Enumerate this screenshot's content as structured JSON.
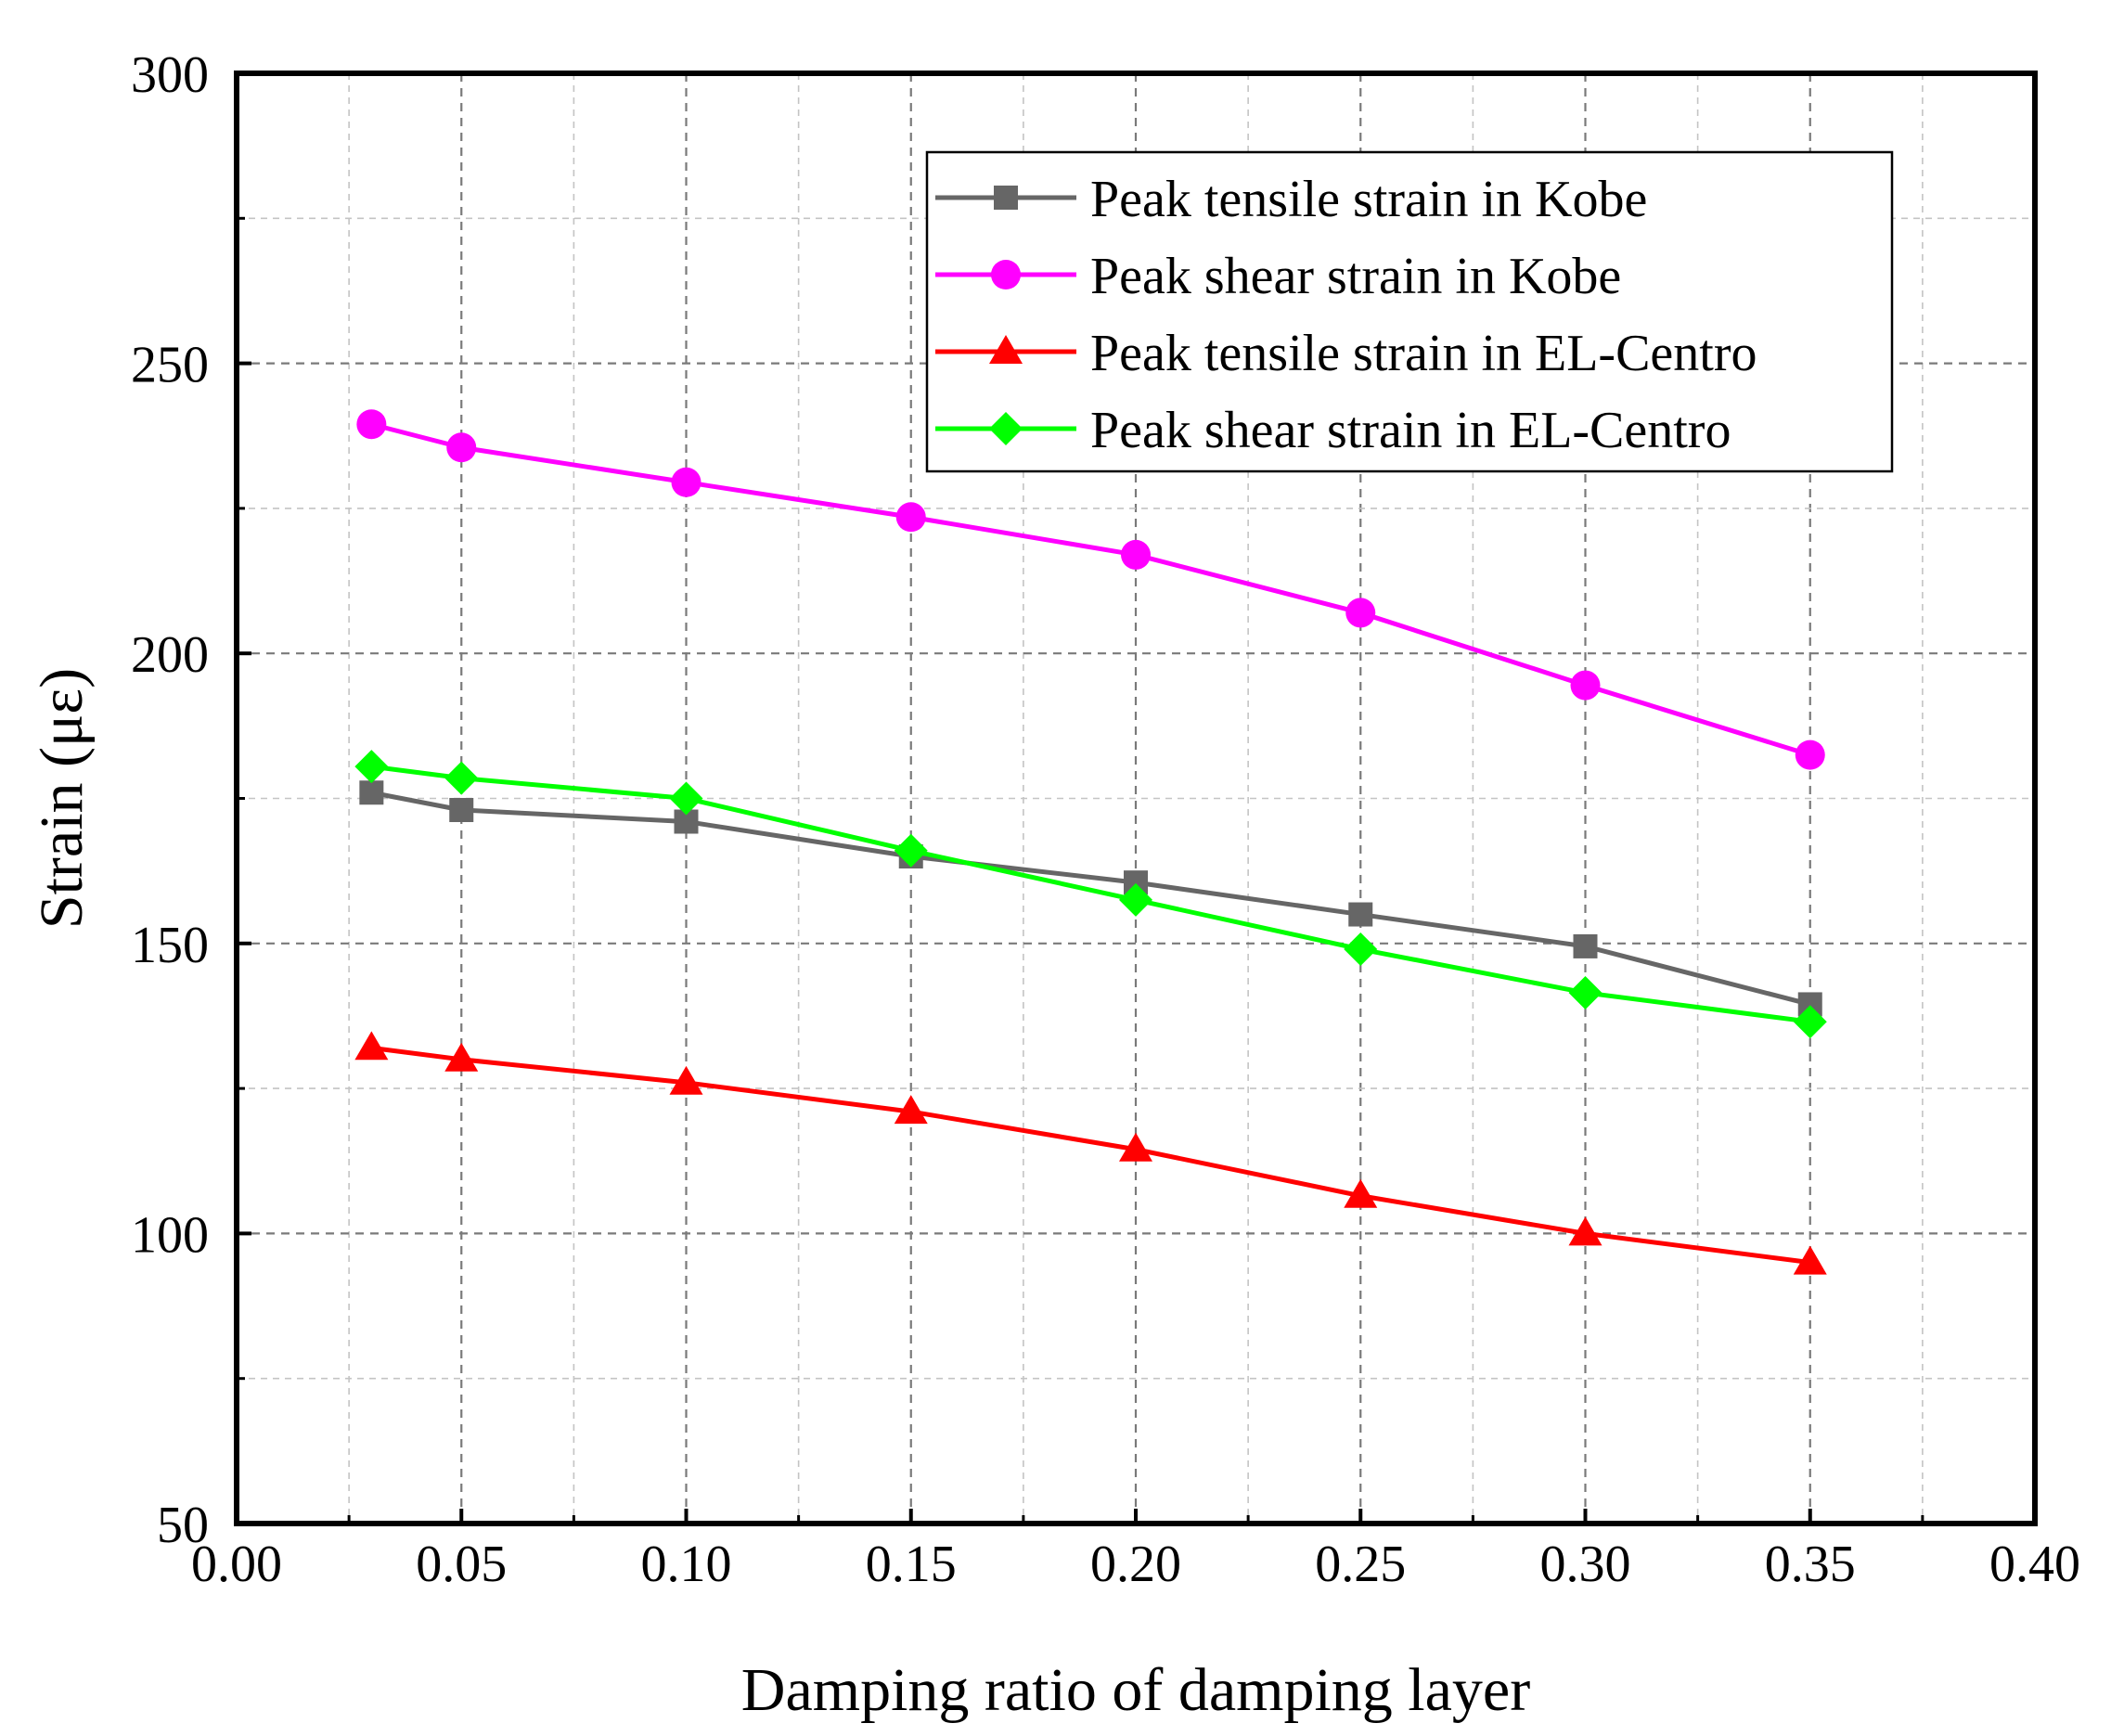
{
  "chart_data": {
    "type": "line",
    "title": "",
    "xlabel": "Damping ratio of damping layer",
    "ylabel": "Strain (με)",
    "xlim": [
      0.0,
      0.4
    ],
    "ylim": [
      50,
      300
    ],
    "xticks": [
      0.0,
      0.05,
      0.1,
      0.15,
      0.2,
      0.25,
      0.3,
      0.35,
      0.4
    ],
    "xtick_labels": [
      "0.00",
      "0.05",
      "0.10",
      "0.15",
      "0.20",
      "0.25",
      "0.30",
      "0.35",
      "0.40"
    ],
    "yticks": [
      50,
      100,
      150,
      200,
      250,
      300
    ],
    "ytick_labels": [
      "50",
      "100",
      "150",
      "200",
      "250",
      "300"
    ],
    "grid": true,
    "legend_position": "top-right",
    "x": [
      0.03,
      0.05,
      0.1,
      0.15,
      0.2,
      0.25,
      0.3,
      0.35
    ],
    "series": [
      {
        "name": "Peak tensile strain in Kobe",
        "marker": "square",
        "color": "#666666",
        "values": [
          176,
          173,
          171,
          165,
          160.5,
          155,
          149.5,
          139.5
        ]
      },
      {
        "name": "Peak shear strain in Kobe",
        "marker": "circle",
        "color": "#ff00ff",
        "values": [
          239.5,
          235.5,
          229.5,
          223.5,
          217,
          207,
          194.5,
          182.5
        ]
      },
      {
        "name": "Peak tensile strain in EL-Centro",
        "marker": "triangle",
        "color": "#ff0000",
        "values": [
          132,
          130,
          126,
          121,
          114.5,
          106.5,
          100,
          95
        ]
      },
      {
        "name": "Peak shear strain in EL-Centro",
        "marker": "diamond",
        "color": "#00ff00",
        "values": [
          180.5,
          178.5,
          175,
          166,
          157.5,
          149,
          141.5,
          136.5
        ]
      }
    ]
  }
}
